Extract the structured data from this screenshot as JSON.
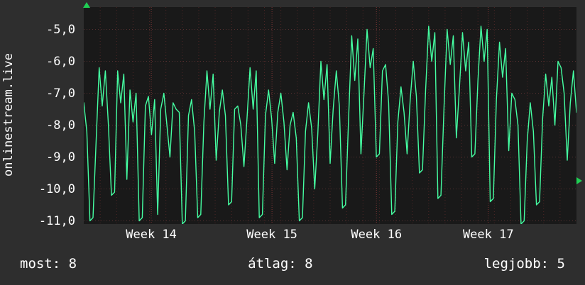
{
  "colors": {
    "background": "#2e2e2e",
    "plot_background": "#191919",
    "text": "#ffffff",
    "line_green": "#45ffa2",
    "arrow_green": "#1fcf54",
    "grid_horizontal": "#553030",
    "grid_vertical_minor": "#4e2626",
    "grid_vertical_major": "#7d3535"
  },
  "left_axis_title": "onlinestream.live",
  "stats": {
    "most": "most: 8",
    "atlag": "átlag: 8",
    "legjobb": "legjobb: 5"
  },
  "chart_data": {
    "type": "line",
    "title": "",
    "ylabel": "onlinestream.live",
    "xlabel": "",
    "legend_position": "none",
    "grid": true,
    "x_tick_labels": [
      "Week 14",
      "Week 15",
      "Week 16",
      "Week 17"
    ],
    "x_tick_positions": [
      0.137,
      0.382,
      0.594,
      0.821
    ],
    "y_ticks": [
      -5,
      -6,
      -7,
      -8,
      -9,
      -10,
      -11
    ],
    "y_tick_labels": [
      "-5,0",
      "-6,0",
      "-7,0",
      "-8,0",
      "-9,0",
      "-10,0",
      "-11,0"
    ],
    "ylim_top": -4.3,
    "ylim_bottom": -11.1,
    "vertical_divisions": 30,
    "series": [
      {
        "name": "onlinestream.live",
        "color": "#45ffa2",
        "values": [
          -7.3,
          -8.2,
          -11.0,
          -10.9,
          -8.5,
          -6.2,
          -7.4,
          -6.3,
          -8.0,
          -10.2,
          -10.1,
          -6.3,
          -7.3,
          -6.4,
          -9.7,
          -6.9,
          -7.9,
          -7.0,
          -11.0,
          -10.9,
          -7.4,
          -7.1,
          -8.3,
          -7.2,
          -10.8,
          -7.5,
          -7.0,
          -8.0,
          -9.0,
          -7.3,
          -7.5,
          -7.6,
          -11.1,
          -11.0,
          -7.7,
          -7.2,
          -8.2,
          -10.9,
          -10.8,
          -7.9,
          -6.3,
          -7.5,
          -6.4,
          -9.1,
          -7.6,
          -6.9,
          -7.7,
          -10.5,
          -10.4,
          -7.5,
          -7.4,
          -8.0,
          -9.3,
          -7.8,
          -6.2,
          -7.5,
          -6.3,
          -10.9,
          -10.8,
          -7.7,
          -6.9,
          -7.8,
          -9.2,
          -7.6,
          -7.0,
          -7.9,
          -9.4,
          -8.0,
          -7.6,
          -8.4,
          -11.0,
          -10.9,
          -8.2,
          -7.3,
          -8.1,
          -10.0,
          -8.3,
          -6.0,
          -7.2,
          -6.1,
          -9.2,
          -7.5,
          -6.3,
          -7.4,
          -10.6,
          -10.5,
          -7.8,
          -5.2,
          -6.6,
          -5.3,
          -8.9,
          -7.0,
          -5.0,
          -6.2,
          -5.6,
          -9.0,
          -8.9,
          -6.3,
          -6.1,
          -7.3,
          -10.8,
          -10.7,
          -7.9,
          -6.8,
          -7.6,
          -8.9,
          -7.2,
          -6.0,
          -7.1,
          -9.5,
          -9.4,
          -6.9,
          -4.9,
          -6.0,
          -5.1,
          -10.3,
          -10.2,
          -7.4,
          -5.0,
          -6.1,
          -5.2,
          -8.4,
          -6.8,
          -5.1,
          -6.3,
          -5.4,
          -9.0,
          -8.9,
          -6.6,
          -4.9,
          -6.0,
          -5.0,
          -10.4,
          -10.3,
          -7.2,
          -5.4,
          -6.5,
          -5.6,
          -8.8,
          -7.0,
          -7.2,
          -8.0,
          -11.1,
          -11.0,
          -8.5,
          -7.3,
          -8.2,
          -10.5,
          -10.4,
          -7.8,
          -6.4,
          -7.4,
          -6.5,
          -8.0,
          -6.0,
          -6.2,
          -7.0,
          -9.1,
          -7.3,
          -6.3,
          -7.6
        ]
      }
    ]
  }
}
